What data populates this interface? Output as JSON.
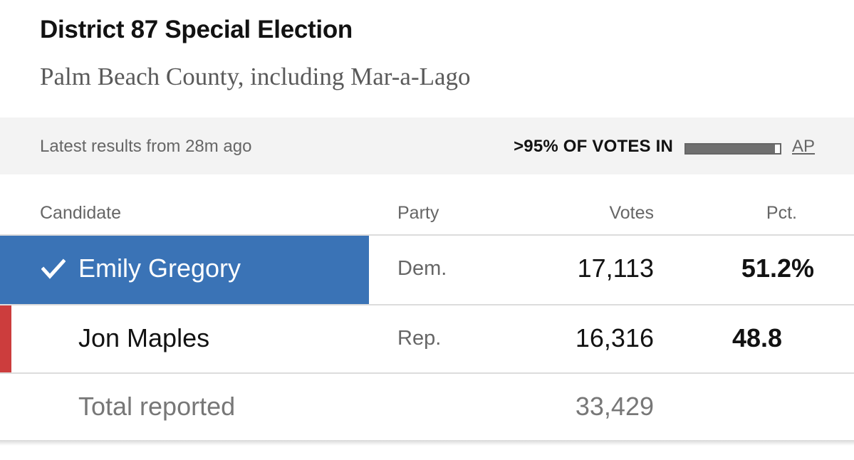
{
  "header": {
    "title": "District 87 Special Election",
    "subtitle": "Palm Beach County, including Mar-a-Lago"
  },
  "status": {
    "latest_text": "Latest results from 28m ago",
    "reporting_text": ">95% OF VOTES IN",
    "reporting_fraction": 0.95,
    "source_label": "AP"
  },
  "table": {
    "columns": {
      "candidate": "Candidate",
      "party": "Party",
      "votes": "Votes",
      "pct": "Pct."
    },
    "rows": [
      {
        "name": "Emily Gregory",
        "party": "Dem.",
        "votes": "17,113",
        "pct": "51.2%",
        "winner": true,
        "color": "#3a73b6"
      },
      {
        "name": "Jon Maples",
        "party": "Rep.",
        "votes": "16,316",
        "pct": "48.8",
        "winner": false,
        "color": "#cc3d3d"
      }
    ],
    "total": {
      "label": "Total reported",
      "votes": "33,429"
    }
  },
  "icons": {
    "winner": "check-icon"
  }
}
